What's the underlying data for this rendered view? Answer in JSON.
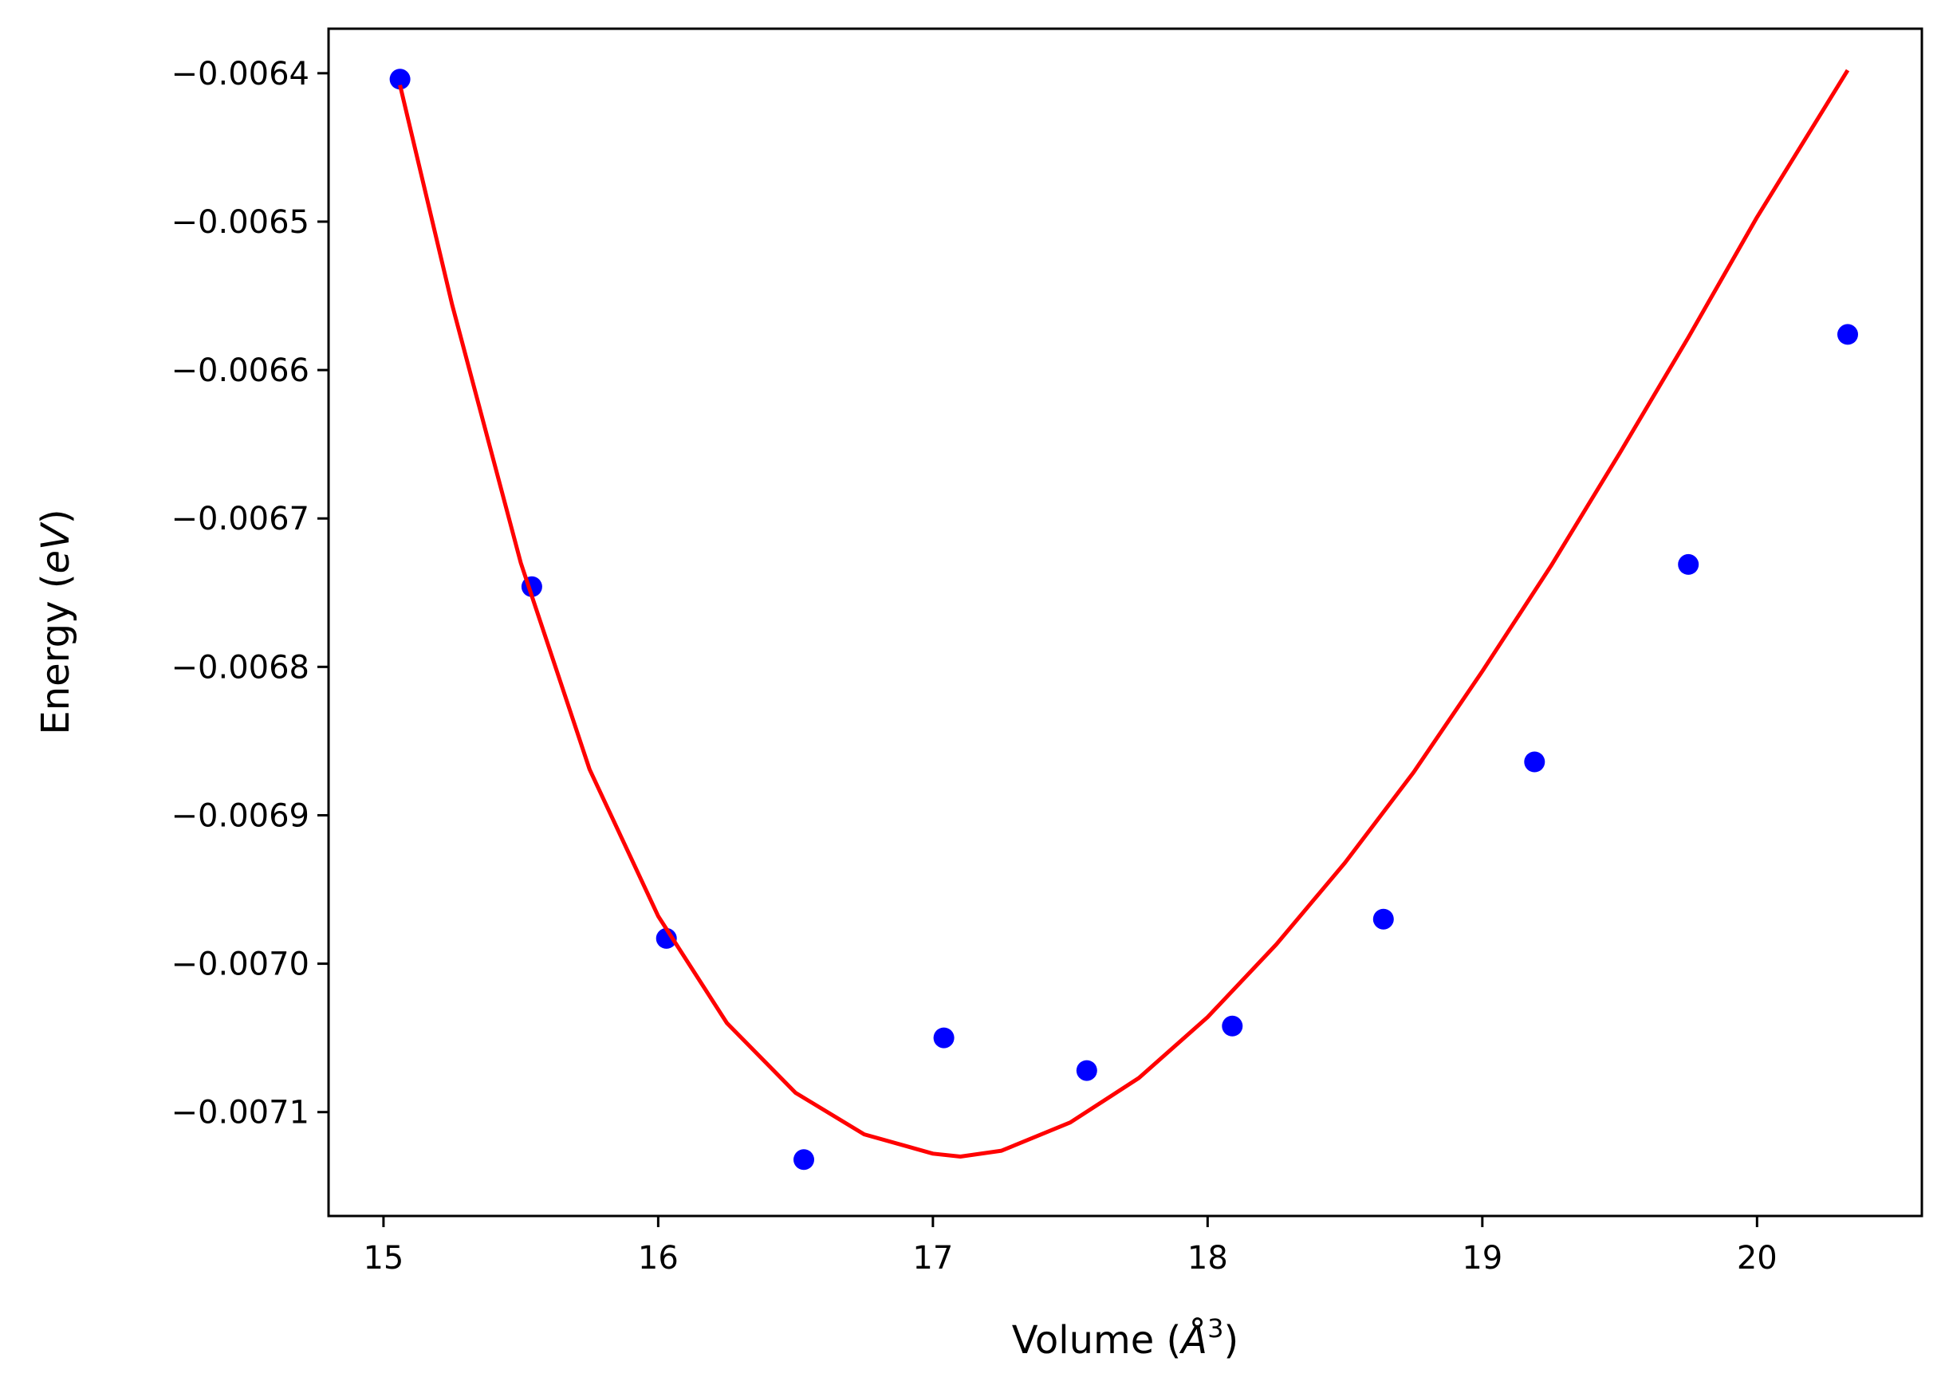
{
  "chart_data": {
    "type": "scatter",
    "title": "",
    "xlabel": "Volume ($\\AA^3$)",
    "ylabel": "Energy ($eV$)",
    "xlabel_parts": {
      "prefix": "Volume (",
      "symbol": "Å",
      "sup": "3",
      "suffix": ")"
    },
    "ylabel_parts": {
      "prefix": "Energy (",
      "italic": "eV",
      "suffix": ")"
    },
    "xlim": [
      14.8,
      20.6
    ],
    "ylim": [
      -0.00717,
      -0.00637
    ],
    "xticks": [
      15,
      16,
      17,
      18,
      19,
      20
    ],
    "yticks": [
      -0.0064,
      -0.0065,
      -0.0066,
      -0.0067,
      -0.0068,
      -0.0069,
      -0.007,
      -0.0071
    ],
    "xtick_labels": [
      "15",
      "16",
      "17",
      "18",
      "19",
      "20"
    ],
    "ytick_labels": [
      "−0.0064",
      "−0.0065",
      "−0.0066",
      "−0.0067",
      "−0.0068",
      "−0.0069",
      "−0.0070",
      "−0.0071"
    ],
    "grid": false,
    "series": [
      {
        "kind": "points",
        "color": "#0000ff",
        "x": [
          15.06,
          15.54,
          16.03,
          16.53,
          17.04,
          17.56,
          18.09,
          18.64,
          19.19,
          19.75,
          20.33
        ],
        "y": [
          -0.006404,
          -0.006746,
          -0.006983,
          -0.007132,
          -0.00705,
          -0.007072,
          -0.007042,
          -0.00697,
          -0.006864,
          -0.006731,
          -0.006576
        ]
      },
      {
        "kind": "fit-curve",
        "color": "#ff0000",
        "x": [
          15.06,
          15.25,
          15.5,
          15.75,
          16.0,
          16.25,
          16.5,
          16.75,
          17.0,
          17.1,
          17.25,
          17.5,
          17.75,
          18.0,
          18.25,
          18.5,
          18.75,
          19.0,
          19.25,
          19.5,
          19.75,
          20.0,
          20.33
        ],
        "y": [
          -0.006408,
          -0.006556,
          -0.00673,
          -0.006869,
          -0.006968,
          -0.00704,
          -0.007087,
          -0.007115,
          -0.007128,
          -0.00713,
          -0.007126,
          -0.007107,
          -0.007077,
          -0.007036,
          -0.006987,
          -0.006932,
          -0.006871,
          -0.006803,
          -0.006732,
          -0.006656,
          -0.006578,
          -0.006497,
          -0.006398
        ]
      }
    ]
  }
}
